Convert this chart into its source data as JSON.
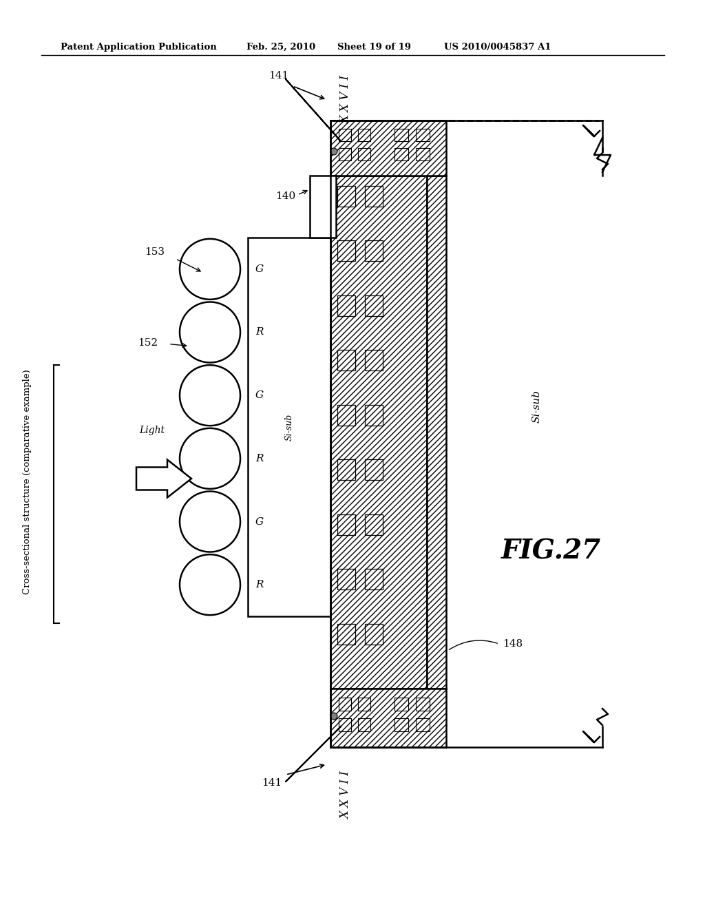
{
  "background_color": "#ffffff",
  "header_text": "Patent Application Publication",
  "header_date": "Feb. 25, 2010",
  "header_sheet": "Sheet 19 of 19",
  "header_patent": "US 2010/0045837 A1",
  "figure_label": "FIG.27",
  "cross_section_label": "Cross-sectional structure (comparative example)",
  "light_label": "Light",
  "xxvii_label": "X X V I I",
  "si_sub_right": "Si-sub",
  "si_sub_left": "Si-sub",
  "color_filters": [
    "G",
    "R",
    "G",
    "R",
    "G",
    "R"
  ],
  "label_141_top": "141",
  "label_141_bot": "141",
  "label_140": "140",
  "label_153": "153",
  "label_152": "152",
  "label_148": "148",
  "black": "#000000",
  "lw": 1.8
}
